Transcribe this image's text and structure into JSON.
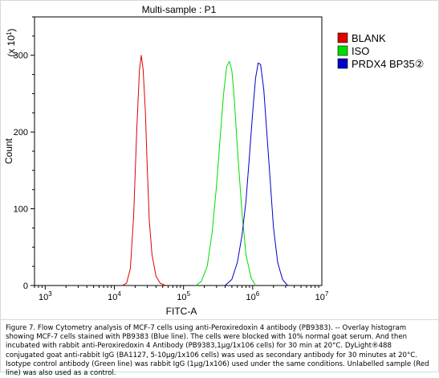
{
  "chart_data": {
    "type": "line",
    "title": "Multi-sample : P1",
    "xlabel": "FITC-A",
    "ylabel": "Count",
    "y_multiplier": "(x 10",
    "y_multiplier_exp": "1",
    "x_scale": "log",
    "xlim": [
      700,
      10000000
    ],
    "ylim": [
      0,
      350
    ],
    "y_ticks": [
      0,
      100,
      200,
      300
    ],
    "x_ticks": [
      {
        "value": 1000,
        "base": "10",
        "exp": "3"
      },
      {
        "value": 10000,
        "base": "10",
        "exp": "4"
      },
      {
        "value": 100000,
        "base": "10",
        "exp": "5"
      },
      {
        "value": 1000000,
        "base": "10",
        "exp": "6"
      },
      {
        "value": 10000000,
        "base": "10",
        "exp": "7"
      }
    ],
    "legend_position": "top-right",
    "series": [
      {
        "name": "BLANK",
        "color": "#e00000",
        "x": [
          13000,
          15000,
          17000,
          19000,
          21000,
          23000,
          24500,
          26000,
          28000,
          30000,
          32000,
          35000,
          40000,
          46000,
          55000
        ],
        "y": [
          0,
          3,
          22,
          90,
          200,
          280,
          300,
          282,
          230,
          150,
          85,
          40,
          12,
          3,
          0
        ]
      },
      {
        "name": "ISO",
        "color": "#00dc00",
        "x": [
          150000,
          180000,
          220000,
          260000,
          300000,
          340000,
          380000,
          420000,
          460000,
          500000,
          540000,
          600000,
          700000,
          800000,
          950000,
          1100000
        ],
        "y": [
          0,
          5,
          25,
          70,
          130,
          195,
          250,
          285,
          292,
          280,
          245,
          180,
          95,
          40,
          10,
          0
        ]
      },
      {
        "name": "PRDX4  BP35②",
        "color": "#0000c8",
        "x": [
          400000,
          500000,
          600000,
          700000,
          800000,
          900000,
          1000000,
          1100000,
          1200000,
          1300000,
          1450000,
          1600000,
          1800000,
          2000000,
          2300000,
          2700000,
          3200000
        ],
        "y": [
          0,
          8,
          30,
          65,
          110,
          170,
          225,
          270,
          290,
          288,
          255,
          200,
          135,
          75,
          30,
          8,
          0
        ]
      }
    ]
  },
  "caption": {
    "text": "Figure 7. Flow Cytometry analysis of MCF-7 cells using anti-Peroxiredoxin 4 antibody (PB9383). -- Overlay histogram showing MCF-7 cells stained with PB9383 (Blue line). The cells were blocked with 10% normal goat serum. And then incubated with rabbit anti-Peroxiredoxin 4 Antibody (PB9383,1μg/1x106 cells) for 30 min at 20°C. DyLight®488 conjugated goat anti-rabbit IgG (BA1127, 5-10μg/1x106 cells) was used as secondary antibody for 30 minutes at 20°C. Isotype control antibody (Green line) was rabbit IgG (1μg/1x106) used under the same conditions. Unlabelled sample (Red line) was also used as a control."
  }
}
